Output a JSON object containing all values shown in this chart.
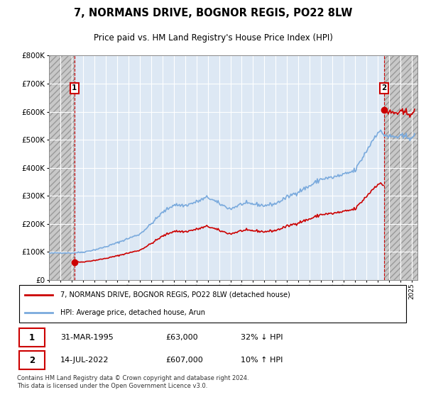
{
  "title": "7, NORMANS DRIVE, BOGNOR REGIS, PO22 8LW",
  "subtitle": "Price paid vs. HM Land Registry's House Price Index (HPI)",
  "legend_line1": "7, NORMANS DRIVE, BOGNOR REGIS, PO22 8LW (detached house)",
  "legend_line2": "HPI: Average price, detached house, Arun",
  "footnote": "Contains HM Land Registry data © Crown copyright and database right 2024.\nThis data is licensed under the Open Government Licence v3.0.",
  "sale1_label": "1",
  "sale1_date": "31-MAR-1995",
  "sale1_price": "£63,000",
  "sale1_hpi": "32% ↓ HPI",
  "sale2_label": "2",
  "sale2_date": "14-JUL-2022",
  "sale2_price": "£607,000",
  "sale2_hpi": "10% ↑ HPI",
  "sale1_x": 1995.25,
  "sale1_y": 63000,
  "sale2_x": 2022.54,
  "sale2_y": 607000,
  "hpi_color": "#7aaadd",
  "price_color": "#cc0000",
  "bg_plot": "#dde8f4",
  "grid_color": "#ffffff",
  "ylim": [
    0,
    800000
  ],
  "xlim_left": 1993.0,
  "xlim_right": 2025.5
}
